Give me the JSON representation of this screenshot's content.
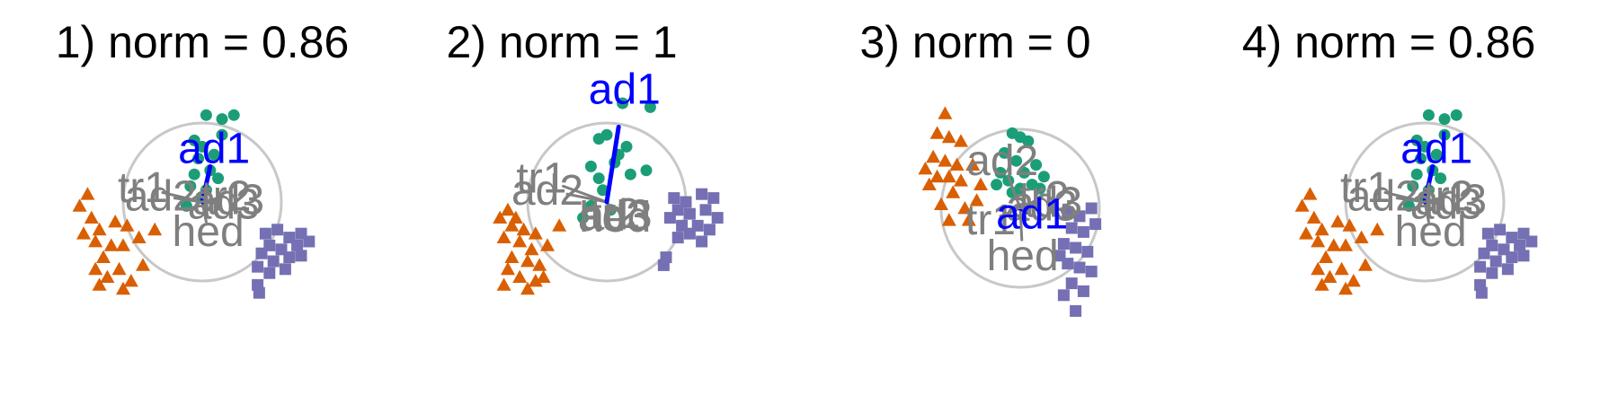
{
  "colors": {
    "group_circle": "#1b9e77",
    "group_triangle": "#d95f02",
    "group_square": "#7570b3",
    "vector_highlight": "#0000ff",
    "vector_other": "#7f7f7f",
    "unit_circle": "#c8c8c8"
  },
  "chart_data": [
    {
      "type": "scatter",
      "title": "1) norm = 0.86",
      "highlight": "ad1",
      "vectors": [
        {
          "name": "ad1",
          "x": 0.1,
          "y": 0.45
        },
        {
          "name": "ad2",
          "x": -0.35,
          "y": 0.05
        },
        {
          "name": "tr1",
          "x": -0.5,
          "y": 0.12
        },
        {
          "name": "tr2",
          "x": 0.2,
          "y": 0.05
        },
        {
          "name": "ad3",
          "x": 0.22,
          "y": 0.02
        },
        {
          "name": "ad3",
          "x": 0.18,
          "y": -0.02
        },
        {
          "name": "hed",
          "x": 0.05,
          "y": -0.25
        }
      ],
      "groups": [
        {
          "shape": "circle",
          "points": [
            [
              0.05,
              1.1
            ],
            [
              0.25,
              1.05
            ],
            [
              0.4,
              1.1
            ],
            [
              0.0,
              0.7
            ],
            [
              -0.05,
              0.55
            ],
            [
              0.15,
              0.6
            ],
            [
              0.1,
              0.4
            ],
            [
              -0.1,
              0.35
            ],
            [
              0.2,
              0.3
            ],
            [
              -0.15,
              0.2
            ],
            [
              0.05,
              0.15
            ],
            [
              0.0,
              0.05
            ],
            [
              -0.2,
              -0.05
            ],
            [
              0.25,
              0.85
            ],
            [
              -0.1,
              0.78
            ]
          ]
        },
        {
          "shape": "triangle",
          "points": [
            [
              -1.45,
              0.1
            ],
            [
              -1.55,
              -0.05
            ],
            [
              -1.4,
              -0.2
            ],
            [
              -1.3,
              -0.35
            ],
            [
              -1.1,
              -0.25
            ],
            [
              -0.95,
              -0.3
            ],
            [
              -1.35,
              -0.5
            ],
            [
              -1.15,
              -0.55
            ],
            [
              -1.0,
              -0.55
            ],
            [
              -1.25,
              -0.7
            ],
            [
              -1.05,
              -0.85
            ],
            [
              -1.2,
              -0.95
            ],
            [
              -0.9,
              -1.0
            ],
            [
              -1.35,
              -0.85
            ],
            [
              -0.8,
              -0.45
            ],
            [
              -1.5,
              -0.4
            ],
            [
              -0.6,
              -0.35
            ],
            [
              -1.0,
              -1.1
            ],
            [
              -1.3,
              -1.05
            ],
            [
              -0.75,
              -0.8
            ]
          ]
        },
        {
          "shape": "square",
          "points": [
            [
              0.8,
              -0.4
            ],
            [
              0.95,
              -0.35
            ],
            [
              1.1,
              -0.45
            ],
            [
              1.25,
              -0.4
            ],
            [
              0.85,
              -0.55
            ],
            [
              1.0,
              -0.6
            ],
            [
              1.2,
              -0.55
            ],
            [
              1.35,
              -0.5
            ],
            [
              0.75,
              -0.65
            ],
            [
              0.9,
              -0.75
            ],
            [
              1.1,
              -0.7
            ],
            [
              1.25,
              -0.68
            ],
            [
              1.05,
              -0.85
            ],
            [
              0.85,
              -0.9
            ],
            [
              0.7,
              -0.82
            ],
            [
              0.7,
              -1.05
            ],
            [
              0.72,
              -1.15
            ]
          ]
        }
      ]
    },
    {
      "type": "scatter",
      "title": "2) norm = 1",
      "highlight": "ad1",
      "vectors": [
        {
          "name": "ad1",
          "x": 0.15,
          "y": 0.95
        },
        {
          "name": "ad2",
          "x": -0.5,
          "y": 0.1
        },
        {
          "name": "tr1",
          "x": -0.55,
          "y": 0.2
        },
        {
          "name": "tr2",
          "x": 0.07,
          "y": -0.1
        },
        {
          "name": "ad3",
          "x": 0.08,
          "y": -0.11
        },
        {
          "name": "ad3",
          "x": 0.06,
          "y": -0.12
        },
        {
          "name": "hed",
          "x": 0.07,
          "y": -0.13
        }
      ],
      "groups": [
        {
          "shape": "circle",
          "points": [
            [
              0.2,
              1.25
            ],
            [
              0.55,
              1.2
            ],
            [
              0.0,
              0.85
            ],
            [
              -0.1,
              0.8
            ],
            [
              0.25,
              0.7
            ],
            [
              0.1,
              0.5
            ],
            [
              -0.2,
              0.45
            ],
            [
              0.3,
              0.35
            ],
            [
              -0.1,
              0.3
            ],
            [
              0.5,
              0.4
            ],
            [
              -0.05,
              0.15
            ],
            [
              -0.2,
              -0.05
            ],
            [
              0.05,
              -0.1
            ],
            [
              -0.3,
              -0.2
            ],
            [
              0.15,
              0.6
            ]
          ]
        },
        {
          "shape": "triangle",
          "points": [
            [
              -1.25,
              -0.1
            ],
            [
              -1.35,
              -0.2
            ],
            [
              -1.2,
              -0.3
            ],
            [
              -1.05,
              -0.35
            ],
            [
              -0.9,
              -0.4
            ],
            [
              -1.3,
              -0.45
            ],
            [
              -1.1,
              -0.5
            ],
            [
              -0.95,
              -0.6
            ],
            [
              -1.2,
              -0.7
            ],
            [
              -1.0,
              -0.75
            ],
            [
              -0.85,
              -0.8
            ],
            [
              -1.25,
              -0.85
            ],
            [
              -1.1,
              -0.95
            ],
            [
              -0.9,
              -1.0
            ],
            [
              -1.3,
              -1.05
            ],
            [
              -0.75,
              -0.55
            ],
            [
              -0.6,
              -0.3
            ],
            [
              -1.15,
              -0.2
            ],
            [
              -0.8,
              -0.95
            ],
            [
              -1.0,
              -1.1
            ]
          ]
        },
        {
          "shape": "square",
          "points": [
            [
              0.85,
              0.05
            ],
            [
              1.0,
              0.0
            ],
            [
              1.2,
              0.1
            ],
            [
              1.35,
              0.05
            ],
            [
              0.9,
              -0.1
            ],
            [
              1.05,
              -0.15
            ],
            [
              1.25,
              -0.1
            ],
            [
              1.4,
              -0.2
            ],
            [
              0.8,
              -0.2
            ],
            [
              0.95,
              -0.3
            ],
            [
              1.15,
              -0.3
            ],
            [
              1.3,
              -0.35
            ],
            [
              1.05,
              -0.4
            ],
            [
              0.9,
              -0.45
            ],
            [
              1.2,
              -0.5
            ],
            [
              0.75,
              -0.7
            ],
            [
              0.72,
              -0.8
            ]
          ]
        }
      ]
    },
    {
      "type": "scatter",
      "title": "3) norm = 0",
      "highlight": "ad1",
      "vectors": [
        {
          "name": "ad1",
          "x": 0.1,
          "y": -0.05
        },
        {
          "name": "ad2",
          "x": -0.15,
          "y": 0.4
        },
        {
          "name": "tr1",
          "x": -0.25,
          "y": -0.1
        },
        {
          "name": "tr2",
          "x": 0.2,
          "y": 0.1
        },
        {
          "name": "ad3",
          "x": 0.22,
          "y": 0.05
        },
        {
          "name": "ad3",
          "x": 0.18,
          "y": 0.02
        },
        {
          "name": "hed",
          "x": 0.02,
          "y": -0.4
        }
      ],
      "groups": [
        {
          "shape": "circle",
          "points": [
            [
              -0.1,
              0.95
            ],
            [
              0.0,
              0.9
            ],
            [
              0.1,
              0.85
            ],
            [
              -0.2,
              0.7
            ],
            [
              -0.05,
              0.6
            ],
            [
              0.2,
              0.55
            ],
            [
              -0.25,
              0.45
            ],
            [
              0.05,
              0.45
            ],
            [
              0.3,
              0.4
            ],
            [
              -0.15,
              0.35
            ],
            [
              0.15,
              0.3
            ],
            [
              -0.3,
              0.3
            ],
            [
              0.0,
              0.25
            ],
            [
              0.25,
              0.25
            ],
            [
              -0.1,
              0.2
            ]
          ]
        },
        {
          "shape": "triangle",
          "points": [
            [
              -0.95,
              1.2
            ],
            [
              -1.05,
              0.95
            ],
            [
              -0.9,
              0.9
            ],
            [
              -0.75,
              0.85
            ],
            [
              -1.1,
              0.65
            ],
            [
              -0.95,
              0.6
            ],
            [
              -0.8,
              0.55
            ],
            [
              -1.2,
              0.5
            ],
            [
              -1.05,
              0.4
            ],
            [
              -0.9,
              0.4
            ],
            [
              -0.75,
              0.35
            ],
            [
              -0.6,
              0.55
            ],
            [
              -0.5,
              0.3
            ],
            [
              -0.85,
              0.2
            ],
            [
              -1.0,
              0.05
            ],
            [
              -0.7,
              0.0
            ],
            [
              -0.55,
              0.1
            ],
            [
              -0.9,
              -0.15
            ],
            [
              -0.65,
              -0.15
            ],
            [
              -1.15,
              0.3
            ]
          ]
        },
        {
          "shape": "square",
          "points": [
            [
              0.6,
              -0.05
            ],
            [
              0.75,
              -0.1
            ],
            [
              0.9,
              0.0
            ],
            [
              0.65,
              -0.25
            ],
            [
              0.8,
              -0.3
            ],
            [
              0.95,
              -0.2
            ],
            [
              0.55,
              -0.45
            ],
            [
              0.7,
              -0.5
            ],
            [
              0.85,
              -0.55
            ],
            [
              0.6,
              -0.7
            ],
            [
              0.75,
              -0.75
            ],
            [
              0.9,
              -0.8
            ],
            [
              0.5,
              -0.6
            ],
            [
              0.65,
              -0.95
            ],
            [
              0.55,
              -1.1
            ],
            [
              0.8,
              -1.05
            ],
            [
              0.7,
              -1.3
            ]
          ]
        }
      ]
    },
    {
      "type": "scatter",
      "title": "4) norm = 0.86",
      "highlight": "ad1",
      "vectors": [
        {
          "name": "ad1",
          "x": 0.1,
          "y": 0.45
        },
        {
          "name": "ad2",
          "x": -0.35,
          "y": 0.05
        },
        {
          "name": "tr1",
          "x": -0.5,
          "y": 0.12
        },
        {
          "name": "tr2",
          "x": 0.2,
          "y": 0.05
        },
        {
          "name": "ad3",
          "x": 0.22,
          "y": 0.02
        },
        {
          "name": "ad3",
          "x": 0.18,
          "y": -0.02
        },
        {
          "name": "hed",
          "x": 0.05,
          "y": -0.25
        }
      ],
      "groups": [
        {
          "shape": "circle",
          "points": [
            [
              0.05,
              1.1
            ],
            [
              0.25,
              1.05
            ],
            [
              0.4,
              1.1
            ],
            [
              0.0,
              0.7
            ],
            [
              -0.05,
              0.55
            ],
            [
              0.15,
              0.6
            ],
            [
              0.1,
              0.4
            ],
            [
              -0.1,
              0.35
            ],
            [
              0.2,
              0.3
            ],
            [
              -0.15,
              0.2
            ],
            [
              0.05,
              0.15
            ],
            [
              0.0,
              0.05
            ],
            [
              -0.2,
              -0.05
            ],
            [
              0.25,
              0.85
            ],
            [
              -0.1,
              0.78
            ]
          ]
        },
        {
          "shape": "triangle",
          "points": [
            [
              -1.45,
              0.1
            ],
            [
              -1.55,
              -0.05
            ],
            [
              -1.4,
              -0.2
            ],
            [
              -1.3,
              -0.35
            ],
            [
              -1.1,
              -0.25
            ],
            [
              -0.95,
              -0.3
            ],
            [
              -1.35,
              -0.5
            ],
            [
              -1.15,
              -0.55
            ],
            [
              -1.0,
              -0.55
            ],
            [
              -1.25,
              -0.7
            ],
            [
              -1.05,
              -0.85
            ],
            [
              -1.2,
              -0.95
            ],
            [
              -0.9,
              -1.0
            ],
            [
              -1.35,
              -0.85
            ],
            [
              -0.8,
              -0.45
            ],
            [
              -1.5,
              -0.4
            ],
            [
              -0.6,
              -0.35
            ],
            [
              -1.0,
              -1.1
            ],
            [
              -1.3,
              -1.05
            ],
            [
              -0.75,
              -0.8
            ]
          ]
        },
        {
          "shape": "square",
          "points": [
            [
              0.8,
              -0.4
            ],
            [
              0.95,
              -0.35
            ],
            [
              1.1,
              -0.45
            ],
            [
              1.25,
              -0.4
            ],
            [
              0.85,
              -0.55
            ],
            [
              1.0,
              -0.6
            ],
            [
              1.2,
              -0.55
            ],
            [
              1.35,
              -0.5
            ],
            [
              0.75,
              -0.65
            ],
            [
              0.9,
              -0.75
            ],
            [
              1.1,
              -0.7
            ],
            [
              1.25,
              -0.68
            ],
            [
              1.05,
              -0.85
            ],
            [
              0.85,
              -0.9
            ],
            [
              0.7,
              -0.82
            ],
            [
              0.7,
              -1.05
            ],
            [
              0.72,
              -1.15
            ]
          ]
        }
      ]
    }
  ]
}
